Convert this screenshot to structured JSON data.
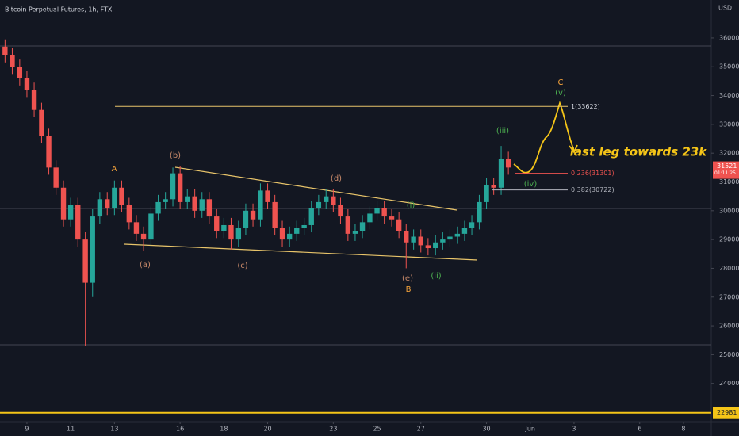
{
  "chart_data": {
    "type": "candlestick",
    "title": "Bitcoin Perpetual Futures, 1h, FTX",
    "currency": "USD",
    "x": [
      8,
      8.33,
      8.67,
      9,
      9.33,
      9.67,
      10,
      10.33,
      10.67,
      11,
      11.33,
      11.67,
      12,
      12.33,
      12.67,
      13,
      13.33,
      13.67,
      14,
      14.33,
      14.67,
      15,
      15.33,
      15.67,
      16,
      16.33,
      16.67,
      17,
      17.33,
      17.67,
      18,
      18.33,
      18.67,
      19,
      19.33,
      19.67,
      20,
      20.33,
      20.67,
      21,
      21.33,
      21.67,
      22,
      22.33,
      22.67,
      23,
      23.33,
      23.67,
      24,
      24.33,
      24.67,
      25,
      25.33,
      25.67,
      26,
      26.33,
      26.67,
      27,
      27.33,
      27.67,
      28,
      28.33,
      28.67,
      29,
      29.33,
      29.67,
      30,
      30.33,
      30.67,
      31
    ],
    "open": [
      35700,
      35400,
      35000,
      34600,
      34200,
      33500,
      32600,
      31500,
      30800,
      29700,
      30200,
      29000,
      27500,
      29800,
      30400,
      30100,
      30800,
      30200,
      29600,
      29200,
      29000,
      29900,
      30300,
      30400,
      31300,
      30300,
      30500,
      30000,
      30400,
      29800,
      29300,
      29500,
      29000,
      29400,
      30000,
      29700,
      30700,
      30300,
      29400,
      29000,
      29200,
      29400,
      29500,
      30100,
      30300,
      30500,
      30200,
      29800,
      29200,
      29300,
      29600,
      29900,
      30100,
      29800,
      29700,
      29300,
      28900,
      29100,
      28800,
      28700,
      28900,
      29000,
      29100,
      29200,
      29400,
      29600,
      30300,
      30900,
      30800,
      31800
    ],
    "high": [
      35950,
      35650,
      35250,
      34850,
      34450,
      33750,
      32850,
      31750,
      31050,
      30450,
      30450,
      29250,
      30050,
      30650,
      30650,
      31050,
      31050,
      30450,
      29850,
      29450,
      30150,
      30550,
      30650,
      31500,
      31550,
      30750,
      30750,
      30650,
      30650,
      30050,
      29750,
      29750,
      29650,
      30250,
      30250,
      30950,
      30950,
      30550,
      29650,
      29450,
      29650,
      29750,
      30350,
      30550,
      30750,
      30750,
      30450,
      30050,
      29550,
      29850,
      30150,
      30350,
      30350,
      30050,
      29950,
      29550,
      29350,
      29350,
      29050,
      29150,
      29250,
      29350,
      29450,
      29650,
      29850,
      30550,
      31150,
      31150,
      32250,
      32050
    ],
    "low": [
      35150,
      34750,
      34350,
      33950,
      33250,
      32350,
      31250,
      30550,
      29450,
      29450,
      28750,
      25300,
      27000,
      29550,
      29850,
      29850,
      29950,
      29350,
      28950,
      28600,
      28750,
      29650,
      30050,
      30150,
      30050,
      30050,
      29750,
      29750,
      29550,
      29050,
      29050,
      28650,
      28750,
      29150,
      29450,
      29450,
      30050,
      29150,
      28750,
      28750,
      28950,
      29150,
      29250,
      29850,
      30050,
      29950,
      29550,
      28950,
      28950,
      29050,
      29350,
      29650,
      29550,
      29450,
      29050,
      28000,
      28650,
      28550,
      28450,
      28450,
      28650,
      28750,
      28850,
      28950,
      29150,
      29350,
      30050,
      30550,
      30550,
      31250
    ],
    "close": [
      35400,
      35000,
      34600,
      34200,
      33500,
      32600,
      31500,
      30800,
      29700,
      30200,
      29000,
      27500,
      29800,
      30400,
      30100,
      30800,
      30200,
      29600,
      29200,
      29000,
      29900,
      30300,
      30400,
      31300,
      30300,
      30500,
      30000,
      30400,
      29800,
      29300,
      29500,
      29000,
      29400,
      30000,
      29700,
      30700,
      30300,
      29400,
      29000,
      29200,
      29400,
      29500,
      30100,
      30300,
      30500,
      30200,
      29800,
      29200,
      29300,
      29600,
      29900,
      30100,
      29800,
      29700,
      29300,
      28900,
      29100,
      28800,
      28700,
      28900,
      29000,
      29100,
      29200,
      29400,
      29600,
      30300,
      30900,
      30800,
      31800,
      31500
    ],
    "up_color": "#26a69a",
    "down_color": "#ef5350",
    "xlim": [
      7.77,
      40.27
    ],
    "xticks": [
      9,
      11,
      13,
      16,
      18,
      20,
      23,
      25,
      27,
      30,
      {
        "value": 32,
        "label": "Jun"
      },
      {
        "value": 34,
        "label": "3"
      },
      {
        "value": 37,
        "label": "6"
      },
      {
        "value": 39,
        "label": "8"
      }
    ],
    "ylim": [
      22670,
      37320
    ],
    "yticks": [
      24000,
      25000,
      26000,
      27000,
      28000,
      29000,
      30000,
      31000,
      32000,
      33000,
      34000,
      35000,
      36000
    ],
    "fib_levels": [
      {
        "value": 33622,
        "label": "1(33622)",
        "color": "#d1d4dc"
      },
      {
        "value": 31301,
        "label": "0.236(31301)",
        "color": "#ef5350"
      },
      {
        "value": 30722,
        "label": "0.382(30722)",
        "color": "#b2b5be"
      }
    ],
    "target_level": 22981,
    "last_price": 31521,
    "countdown": "01:11:25",
    "wave_labels": [
      "A",
      "(a)",
      "(b)",
      "(c)",
      "(d)",
      "(e)",
      "B",
      "(i)",
      "(ii)",
      "(iii)",
      "(iv)",
      "(v)",
      "C"
    ],
    "annotation": "last leg towards 23k"
  }
}
